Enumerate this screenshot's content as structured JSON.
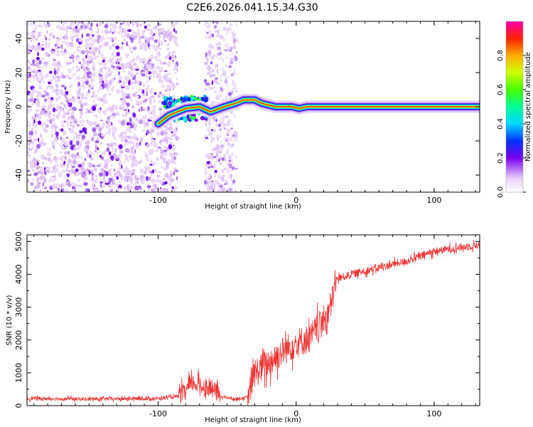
{
  "chart_data": [
    {
      "type": "heatmap",
      "title": "C2E6.2026.041.15.34.G30",
      "xlabel": "Height of straight line (km)",
      "ylabel": "Frequency (Hz)",
      "xlim": [
        -195,
        133
      ],
      "ylim": [
        -50,
        50
      ],
      "xticks": [
        "-100",
        "0",
        "100"
      ],
      "yticks": [
        "40",
        "20",
        "0",
        "-20",
        "-40"
      ],
      "noise_region_km": [
        -195,
        -43
      ],
      "noise_gap_km": [
        -86,
        -66
      ],
      "scatter_cluster_km": [
        -95,
        -65
      ],
      "signal_track": [
        {
          "x": -100,
          "y": -10
        },
        {
          "x": -92,
          "y": -5
        },
        {
          "x": -80,
          "y": -1
        },
        {
          "x": -70,
          "y": 0
        },
        {
          "x": -62,
          "y": -3
        },
        {
          "x": -52,
          "y": 0
        },
        {
          "x": -44,
          "y": 2
        },
        {
          "x": -38,
          "y": 4
        },
        {
          "x": -30,
          "y": 4
        },
        {
          "x": -25,
          "y": 2
        },
        {
          "x": -20,
          "y": 1
        },
        {
          "x": -15,
          "y": 0
        },
        {
          "x": -8,
          "y": 0
        },
        {
          "x": -3,
          "y": 0
        },
        {
          "x": 2,
          "y": -1
        },
        {
          "x": 8,
          "y": 0
        },
        {
          "x": 20,
          "y": 0
        },
        {
          "x": 133,
          "y": 0
        }
      ],
      "colorbar": {
        "label": "Normalized spectral amplitude",
        "range": [
          0,
          1
        ],
        "ticks": [
          "0.0",
          "0.2",
          "0.4",
          "0.6",
          "0.8"
        ]
      }
    },
    {
      "type": "line",
      "xlabel": "Height of straight line (km)",
      "ylabel": "SNR (10 * v/v)",
      "xlim": [
        -195,
        133
      ],
      "ylim": [
        0,
        5200
      ],
      "xticks": [
        "-100",
        "0",
        "100"
      ],
      "yticks": [
        "0",
        "1000",
        "2000",
        "3000",
        "4000",
        "5000"
      ],
      "series": [
        {
          "name": "SNR",
          "color": "#ee3333",
          "points": [
            {
              "x": -195,
              "y": 220
            },
            {
              "x": -150,
              "y": 200
            },
            {
              "x": -100,
              "y": 220
            },
            {
              "x": -85,
              "y": 280
            },
            {
              "x": -80,
              "y": 450
            },
            {
              "x": -75,
              "y": 700
            },
            {
              "x": -70,
              "y": 600
            },
            {
              "x": -65,
              "y": 550
            },
            {
              "x": -60,
              "y": 500
            },
            {
              "x": -55,
              "y": 280
            },
            {
              "x": -45,
              "y": 200
            },
            {
              "x": -35,
              "y": 250
            },
            {
              "x": -30,
              "y": 1000
            },
            {
              "x": -20,
              "y": 1300
            },
            {
              "x": -10,
              "y": 1650
            },
            {
              "x": 0,
              "y": 1900
            },
            {
              "x": 10,
              "y": 2050
            },
            {
              "x": 20,
              "y": 2600
            },
            {
              "x": 25,
              "y": 3000
            },
            {
              "x": 29,
              "y": 3850
            },
            {
              "x": 40,
              "y": 4000
            },
            {
              "x": 60,
              "y": 4200
            },
            {
              "x": 80,
              "y": 4400
            },
            {
              "x": 100,
              "y": 4700
            },
            {
              "x": 133,
              "y": 4900
            }
          ]
        }
      ]
    }
  ]
}
